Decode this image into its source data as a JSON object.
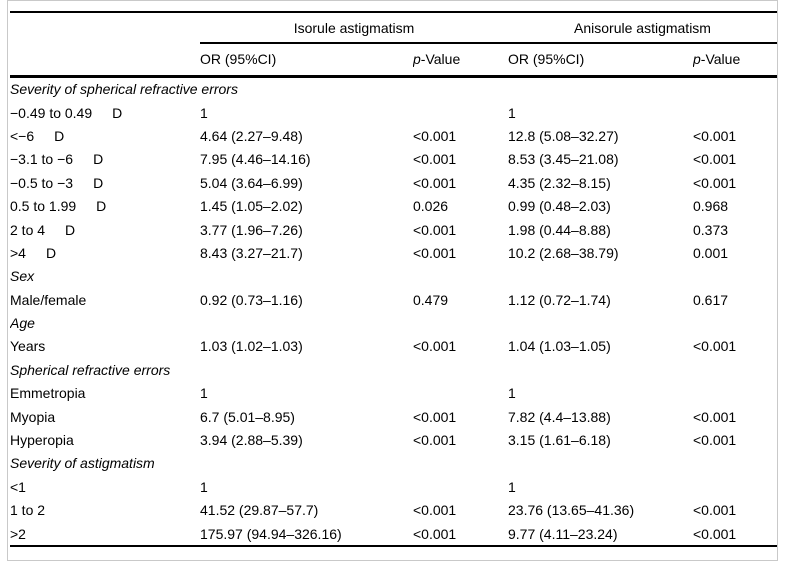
{
  "table": {
    "header": {
      "groups": [
        "Isorule astigmatism",
        "Anisorule astigmatism"
      ],
      "or_label": "OR (95%CI)",
      "p_prefix": "p",
      "p_suffix": "-Value"
    },
    "rows": [
      {
        "type": "section",
        "label": "Severity of spherical refractive errors"
      },
      {
        "type": "item",
        "label": "−0.49 to 0.49",
        "suffix": "D",
        "cells": [
          "1",
          "",
          "1",
          ""
        ]
      },
      {
        "type": "item",
        "label": "<−6",
        "suffix": "D",
        "cells": [
          "4.64 (2.27–9.48)",
          "<0.001",
          "12.8 (5.08–32.27)",
          "<0.001"
        ]
      },
      {
        "type": "item",
        "label": "−3.1 to −6",
        "suffix": "D",
        "cells": [
          "7.95 (4.46–14.16)",
          "<0.001",
          "8.53 (3.45–21.08)",
          "<0.001"
        ]
      },
      {
        "type": "item",
        "label": "−0.5 to −3",
        "suffix": "D",
        "cells": [
          "5.04 (3.64–6.99)",
          "<0.001",
          "4.35 (2.32–8.15)",
          "<0.001"
        ]
      },
      {
        "type": "item",
        "label": "0.5 to 1.99",
        "suffix": "D",
        "cells": [
          "1.45 (1.05–2.02)",
          "0.026",
          "0.99 (0.48–2.03)",
          "0.968"
        ]
      },
      {
        "type": "item",
        "label": "2 to 4",
        "suffix": "D",
        "cells": [
          "3.77 (1.96–7.26)",
          "<0.001",
          "1.98 (0.44–8.88)",
          "0.373"
        ]
      },
      {
        "type": "item",
        "label": ">4",
        "suffix": "D",
        "cells": [
          "8.43 (3.27–21.7)",
          "<0.001",
          "10.2 (2.68–38.79)",
          "0.001"
        ]
      },
      {
        "type": "section",
        "label": "Sex"
      },
      {
        "type": "item",
        "label": "Male/female",
        "cells": [
          "0.92 (0.73–1.16)",
          "0.479",
          "1.12 (0.72–1.74)",
          "0.617"
        ]
      },
      {
        "type": "section",
        "label": "Age"
      },
      {
        "type": "item",
        "label": "Years",
        "cells": [
          "1.03 (1.02–1.03)",
          "<0.001",
          "1.04 (1.03–1.05)",
          "<0.001"
        ]
      },
      {
        "type": "section",
        "label": "Spherical refractive errors"
      },
      {
        "type": "item",
        "label": "Emmetropia",
        "cells": [
          "1",
          "",
          "1",
          ""
        ]
      },
      {
        "type": "item",
        "label": "Myopia",
        "cells": [
          "6.7 (5.01–8.95)",
          "<0.001",
          "7.82 (4.4–13.88)",
          "<0.001"
        ]
      },
      {
        "type": "item",
        "label": "Hyperopia",
        "cells": [
          "3.94 (2.88–5.39)",
          "<0.001",
          "3.15 (1.61–6.18)",
          "<0.001"
        ]
      },
      {
        "type": "section",
        "label": "Severity of astigmatism"
      },
      {
        "type": "item",
        "label": "<1",
        "cells": [
          "1",
          "",
          "1",
          ""
        ]
      },
      {
        "type": "item",
        "label": "1 to 2",
        "cells": [
          "41.52 (29.87–57.7)",
          "<0.001",
          "23.76 (13.65–41.36)",
          "<0.001"
        ]
      },
      {
        "type": "item",
        "label": ">2",
        "cells": [
          "175.97 (94.94–326.16)",
          "<0.001",
          "9.77 (4.11–23.24)",
          "<0.001"
        ]
      }
    ]
  }
}
